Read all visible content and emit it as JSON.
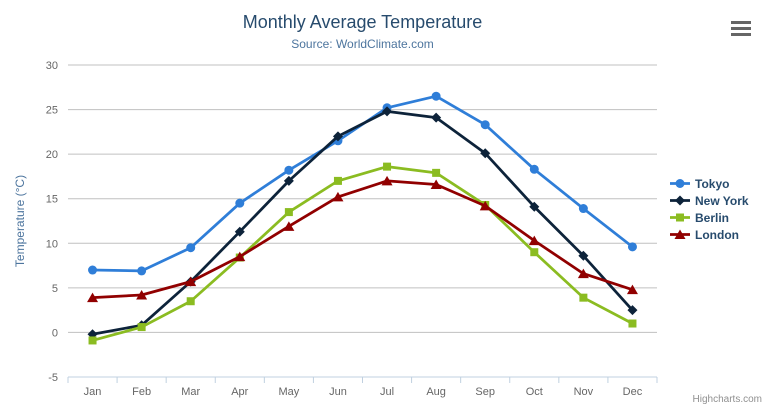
{
  "header": {
    "title": "Monthly Average Temperature",
    "subtitle": "Source: WorldClimate.com"
  },
  "credits": "Highcharts.com",
  "icons": {
    "context_menu": "hamburger-menu-icon"
  },
  "colors": {
    "title": "#274b6d",
    "subtitle": "#4d759e",
    "axis_label": "#666666",
    "axis_title": "#4d759e",
    "grid_line": "#c0c0c0",
    "axis_line": "#c0d0e0",
    "legend_text": "#274b6d",
    "credits_text": "#909090",
    "menu_icon": "#666666"
  },
  "chart_data": {
    "type": "line",
    "title": "Monthly Average Temperature",
    "subtitle": "Source: WorldClimate.com",
    "categories": [
      "Jan",
      "Feb",
      "Mar",
      "Apr",
      "May",
      "Jun",
      "Jul",
      "Aug",
      "Sep",
      "Oct",
      "Nov",
      "Dec"
    ],
    "xlabel": "",
    "ylabel": "Temperature (°C)",
    "ylim": [
      -5,
      30
    ],
    "ytick_step": 5,
    "grid": true,
    "legend_position": "right",
    "series": [
      {
        "name": "Tokyo",
        "color": "#2f7ed8",
        "marker": "circle",
        "values": [
          7.0,
          6.9,
          9.5,
          14.5,
          18.2,
          21.5,
          25.2,
          26.5,
          23.3,
          18.3,
          13.9,
          9.6
        ]
      },
      {
        "name": "New York",
        "color": "#0d233a",
        "marker": "diamond",
        "values": [
          -0.2,
          0.8,
          5.7,
          11.3,
          17.0,
          22.0,
          24.8,
          24.1,
          20.1,
          14.1,
          8.6,
          2.5
        ]
      },
      {
        "name": "Berlin",
        "color": "#8bbc21",
        "marker": "square",
        "values": [
          -0.9,
          0.6,
          3.5,
          8.4,
          13.5,
          17.0,
          18.6,
          17.9,
          14.3,
          9.0,
          3.9,
          1.0
        ]
      },
      {
        "name": "London",
        "color": "#910000",
        "marker": "triangle",
        "values": [
          3.9,
          4.2,
          5.7,
          8.5,
          11.9,
          15.2,
          17.0,
          16.6,
          14.2,
          10.3,
          6.6,
          4.8
        ]
      }
    ]
  }
}
